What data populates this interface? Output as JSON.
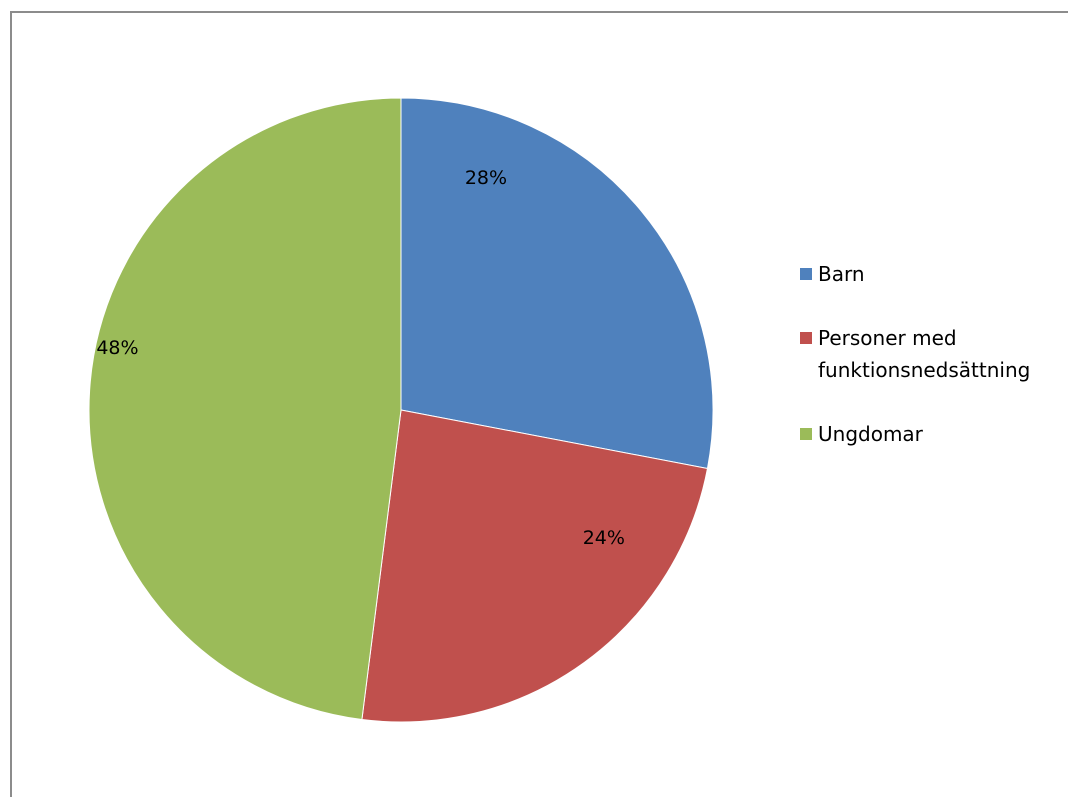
{
  "chart_data": {
    "type": "pie",
    "title": "",
    "categories": [
      "Barn",
      "Personer med funktionsnedsättning",
      "Ungdomar"
    ],
    "values": [
      28,
      24,
      48
    ],
    "labels": [
      "28%",
      "24%",
      "48%"
    ],
    "colors": [
      "#4f81bd",
      "#c0504d",
      "#9bbb59"
    ],
    "legend": {
      "position": "right",
      "entries": [
        "Barn",
        "Personer med funktionsnedsättning",
        "Ungdomar"
      ]
    }
  }
}
